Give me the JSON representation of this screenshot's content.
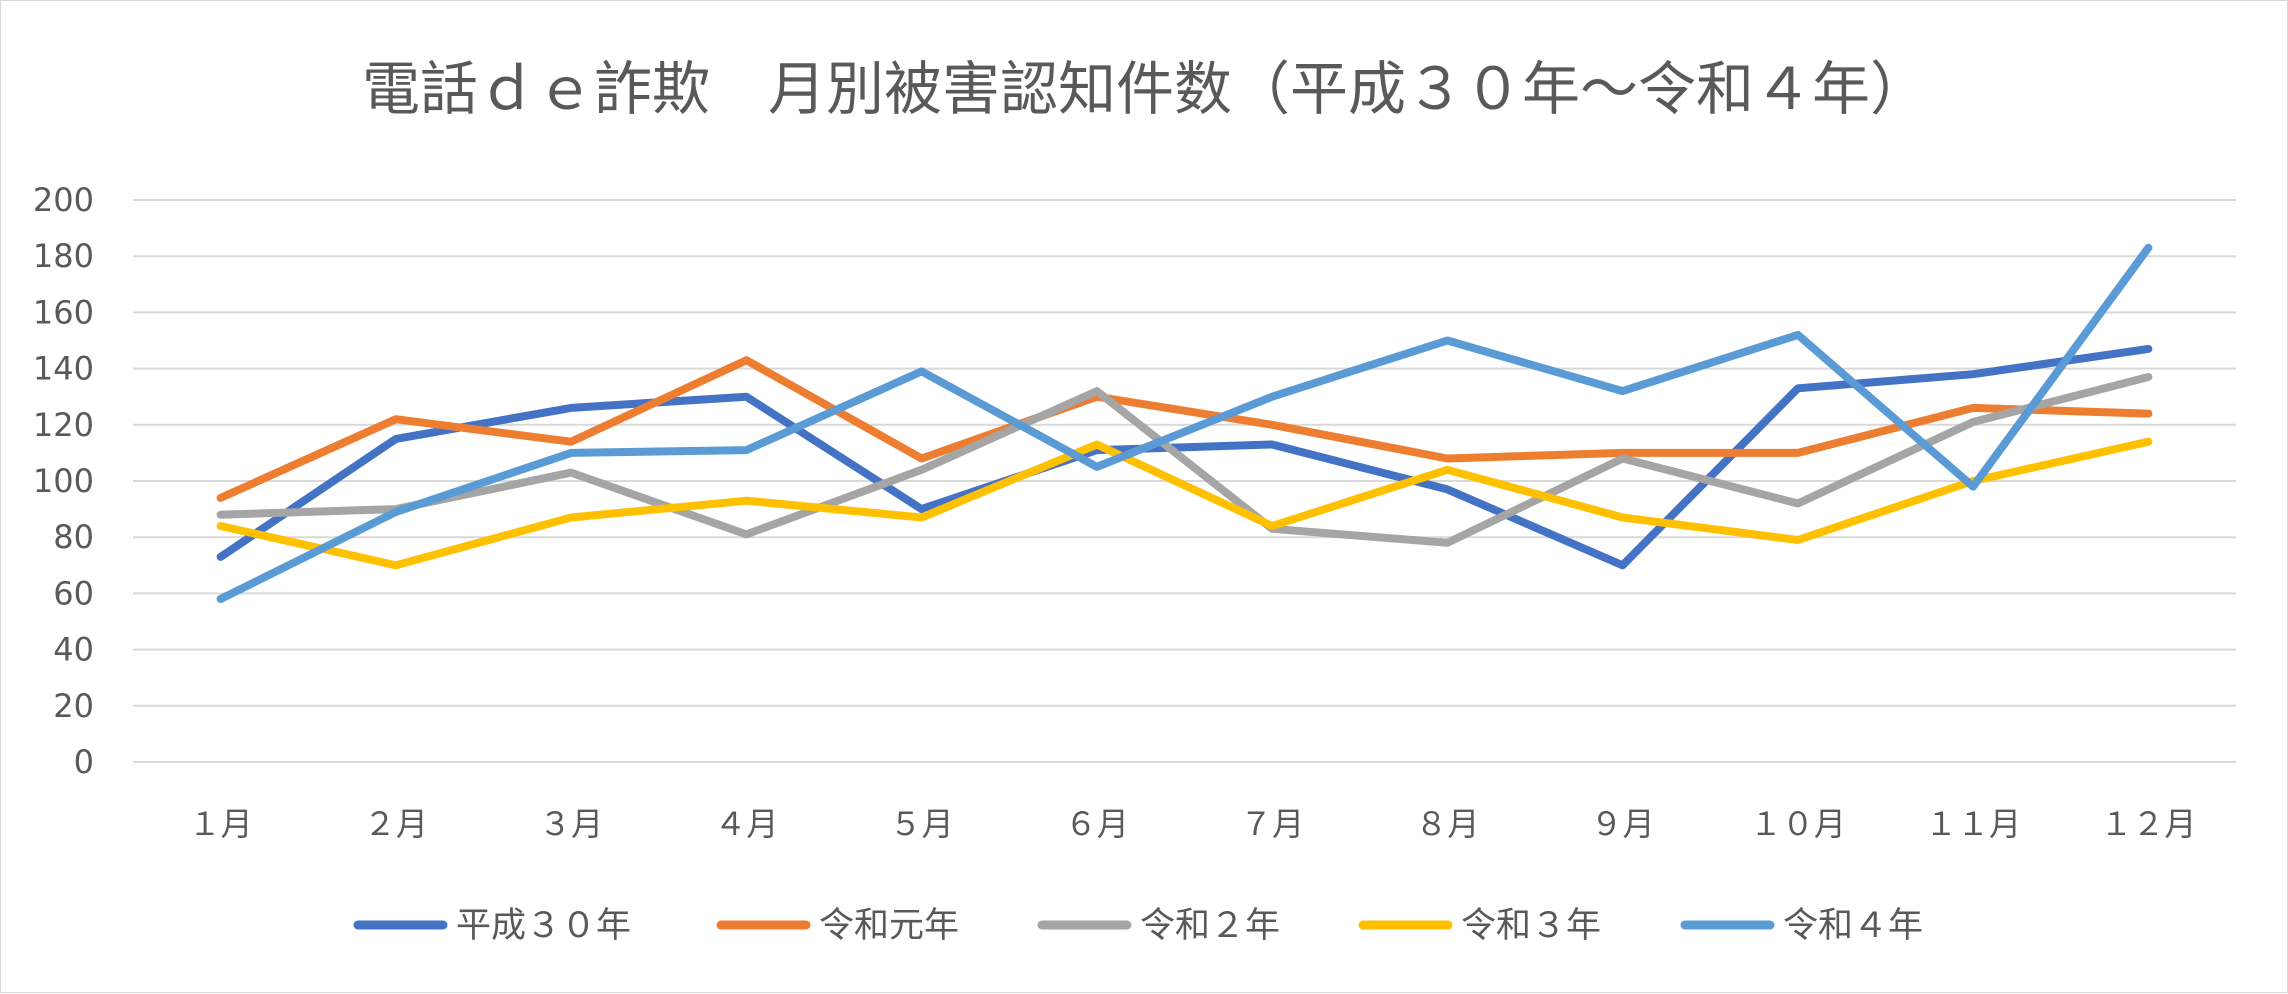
{
  "chart_data": {
    "type": "line",
    "title": "電話ｄｅ詐欺　月別被害認知件数（平成３０年～令和４年）",
    "categories": [
      "１月",
      "２月",
      "３月",
      "４月",
      "５月",
      "６月",
      "７月",
      "８月",
      "９月",
      "１０月",
      "１１月",
      "１２月"
    ],
    "ylim": [
      0,
      200
    ],
    "yticks": [
      0,
      20,
      40,
      60,
      80,
      100,
      120,
      140,
      160,
      180,
      200
    ],
    "grid": true,
    "legend_position": "bottom",
    "series": [
      {
        "name": "平成３０年",
        "color": "#4472c4",
        "values": [
          73,
          115,
          126,
          130,
          90,
          111,
          113,
          97,
          70,
          133,
          138,
          147
        ]
      },
      {
        "name": "令和元年",
        "color": "#ed7d31",
        "values": [
          94,
          122,
          114,
          143,
          108,
          130,
          120,
          108,
          110,
          110,
          126,
          124
        ]
      },
      {
        "name": "令和２年",
        "color": "#a5a5a5",
        "values": [
          88,
          90,
          103,
          81,
          104,
          132,
          83,
          78,
          108,
          92,
          121,
          137
        ]
      },
      {
        "name": "令和３年",
        "color": "#ffc000",
        "values": [
          84,
          70,
          87,
          93,
          87,
          113,
          84,
          104,
          87,
          79,
          100,
          114
        ]
      },
      {
        "name": "令和４年",
        "color": "#5b9bd5",
        "values": [
          58,
          89,
          110,
          111,
          139,
          105,
          130,
          150,
          132,
          152,
          98,
          183
        ]
      }
    ]
  }
}
